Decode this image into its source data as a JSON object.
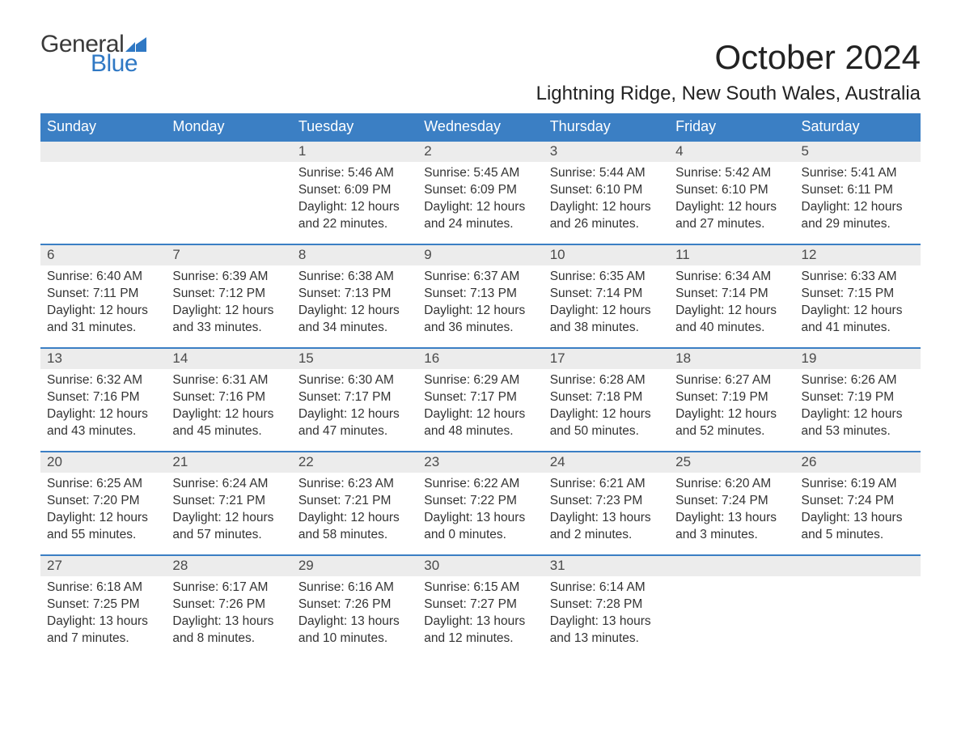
{
  "logo": {
    "text_top": "General",
    "text_bottom": "Blue",
    "flag_color": "#2f78c4",
    "top_color": "#3a3a3a"
  },
  "title": "October 2024",
  "location": "Lightning Ridge, New South Wales, Australia",
  "colors": {
    "header_bg": "#3b7fc4",
    "header_text": "#ffffff",
    "daynum_bg": "#ececec",
    "daynum_border": "#3b7fc4",
    "body_text": "#333333",
    "page_bg": "#ffffff"
  },
  "fonts": {
    "title_size_pt": 32,
    "location_size_pt": 18,
    "header_size_pt": 14,
    "body_size_pt": 12
  },
  "day_headers": [
    "Sunday",
    "Monday",
    "Tuesday",
    "Wednesday",
    "Thursday",
    "Friday",
    "Saturday"
  ],
  "weeks": [
    [
      null,
      null,
      {
        "n": "1",
        "sunrise": "5:46 AM",
        "sunset": "6:09 PM",
        "daylight": "12 hours and 22 minutes."
      },
      {
        "n": "2",
        "sunrise": "5:45 AM",
        "sunset": "6:09 PM",
        "daylight": "12 hours and 24 minutes."
      },
      {
        "n": "3",
        "sunrise": "5:44 AM",
        "sunset": "6:10 PM",
        "daylight": "12 hours and 26 minutes."
      },
      {
        "n": "4",
        "sunrise": "5:42 AM",
        "sunset": "6:10 PM",
        "daylight": "12 hours and 27 minutes."
      },
      {
        "n": "5",
        "sunrise": "5:41 AM",
        "sunset": "6:11 PM",
        "daylight": "12 hours and 29 minutes."
      }
    ],
    [
      {
        "n": "6",
        "sunrise": "6:40 AM",
        "sunset": "7:11 PM",
        "daylight": "12 hours and 31 minutes."
      },
      {
        "n": "7",
        "sunrise": "6:39 AM",
        "sunset": "7:12 PM",
        "daylight": "12 hours and 33 minutes."
      },
      {
        "n": "8",
        "sunrise": "6:38 AM",
        "sunset": "7:13 PM",
        "daylight": "12 hours and 34 minutes."
      },
      {
        "n": "9",
        "sunrise": "6:37 AM",
        "sunset": "7:13 PM",
        "daylight": "12 hours and 36 minutes."
      },
      {
        "n": "10",
        "sunrise": "6:35 AM",
        "sunset": "7:14 PM",
        "daylight": "12 hours and 38 minutes."
      },
      {
        "n": "11",
        "sunrise": "6:34 AM",
        "sunset": "7:14 PM",
        "daylight": "12 hours and 40 minutes."
      },
      {
        "n": "12",
        "sunrise": "6:33 AM",
        "sunset": "7:15 PM",
        "daylight": "12 hours and 41 minutes."
      }
    ],
    [
      {
        "n": "13",
        "sunrise": "6:32 AM",
        "sunset": "7:16 PM",
        "daylight": "12 hours and 43 minutes."
      },
      {
        "n": "14",
        "sunrise": "6:31 AM",
        "sunset": "7:16 PM",
        "daylight": "12 hours and 45 minutes."
      },
      {
        "n": "15",
        "sunrise": "6:30 AM",
        "sunset": "7:17 PM",
        "daylight": "12 hours and 47 minutes."
      },
      {
        "n": "16",
        "sunrise": "6:29 AM",
        "sunset": "7:17 PM",
        "daylight": "12 hours and 48 minutes."
      },
      {
        "n": "17",
        "sunrise": "6:28 AM",
        "sunset": "7:18 PM",
        "daylight": "12 hours and 50 minutes."
      },
      {
        "n": "18",
        "sunrise": "6:27 AM",
        "sunset": "7:19 PM",
        "daylight": "12 hours and 52 minutes."
      },
      {
        "n": "19",
        "sunrise": "6:26 AM",
        "sunset": "7:19 PM",
        "daylight": "12 hours and 53 minutes."
      }
    ],
    [
      {
        "n": "20",
        "sunrise": "6:25 AM",
        "sunset": "7:20 PM",
        "daylight": "12 hours and 55 minutes."
      },
      {
        "n": "21",
        "sunrise": "6:24 AM",
        "sunset": "7:21 PM",
        "daylight": "12 hours and 57 minutes."
      },
      {
        "n": "22",
        "sunrise": "6:23 AM",
        "sunset": "7:21 PM",
        "daylight": "12 hours and 58 minutes."
      },
      {
        "n": "23",
        "sunrise": "6:22 AM",
        "sunset": "7:22 PM",
        "daylight": "13 hours and 0 minutes."
      },
      {
        "n": "24",
        "sunrise": "6:21 AM",
        "sunset": "7:23 PM",
        "daylight": "13 hours and 2 minutes."
      },
      {
        "n": "25",
        "sunrise": "6:20 AM",
        "sunset": "7:24 PM",
        "daylight": "13 hours and 3 minutes."
      },
      {
        "n": "26",
        "sunrise": "6:19 AM",
        "sunset": "7:24 PM",
        "daylight": "13 hours and 5 minutes."
      }
    ],
    [
      {
        "n": "27",
        "sunrise": "6:18 AM",
        "sunset": "7:25 PM",
        "daylight": "13 hours and 7 minutes."
      },
      {
        "n": "28",
        "sunrise": "6:17 AM",
        "sunset": "7:26 PM",
        "daylight": "13 hours and 8 minutes."
      },
      {
        "n": "29",
        "sunrise": "6:16 AM",
        "sunset": "7:26 PM",
        "daylight": "13 hours and 10 minutes."
      },
      {
        "n": "30",
        "sunrise": "6:15 AM",
        "sunset": "7:27 PM",
        "daylight": "13 hours and 12 minutes."
      },
      {
        "n": "31",
        "sunrise": "6:14 AM",
        "sunset": "7:28 PM",
        "daylight": "13 hours and 13 minutes."
      },
      null,
      null
    ]
  ],
  "labels": {
    "sunrise": "Sunrise: ",
    "sunset": "Sunset: ",
    "daylight": "Daylight: "
  }
}
